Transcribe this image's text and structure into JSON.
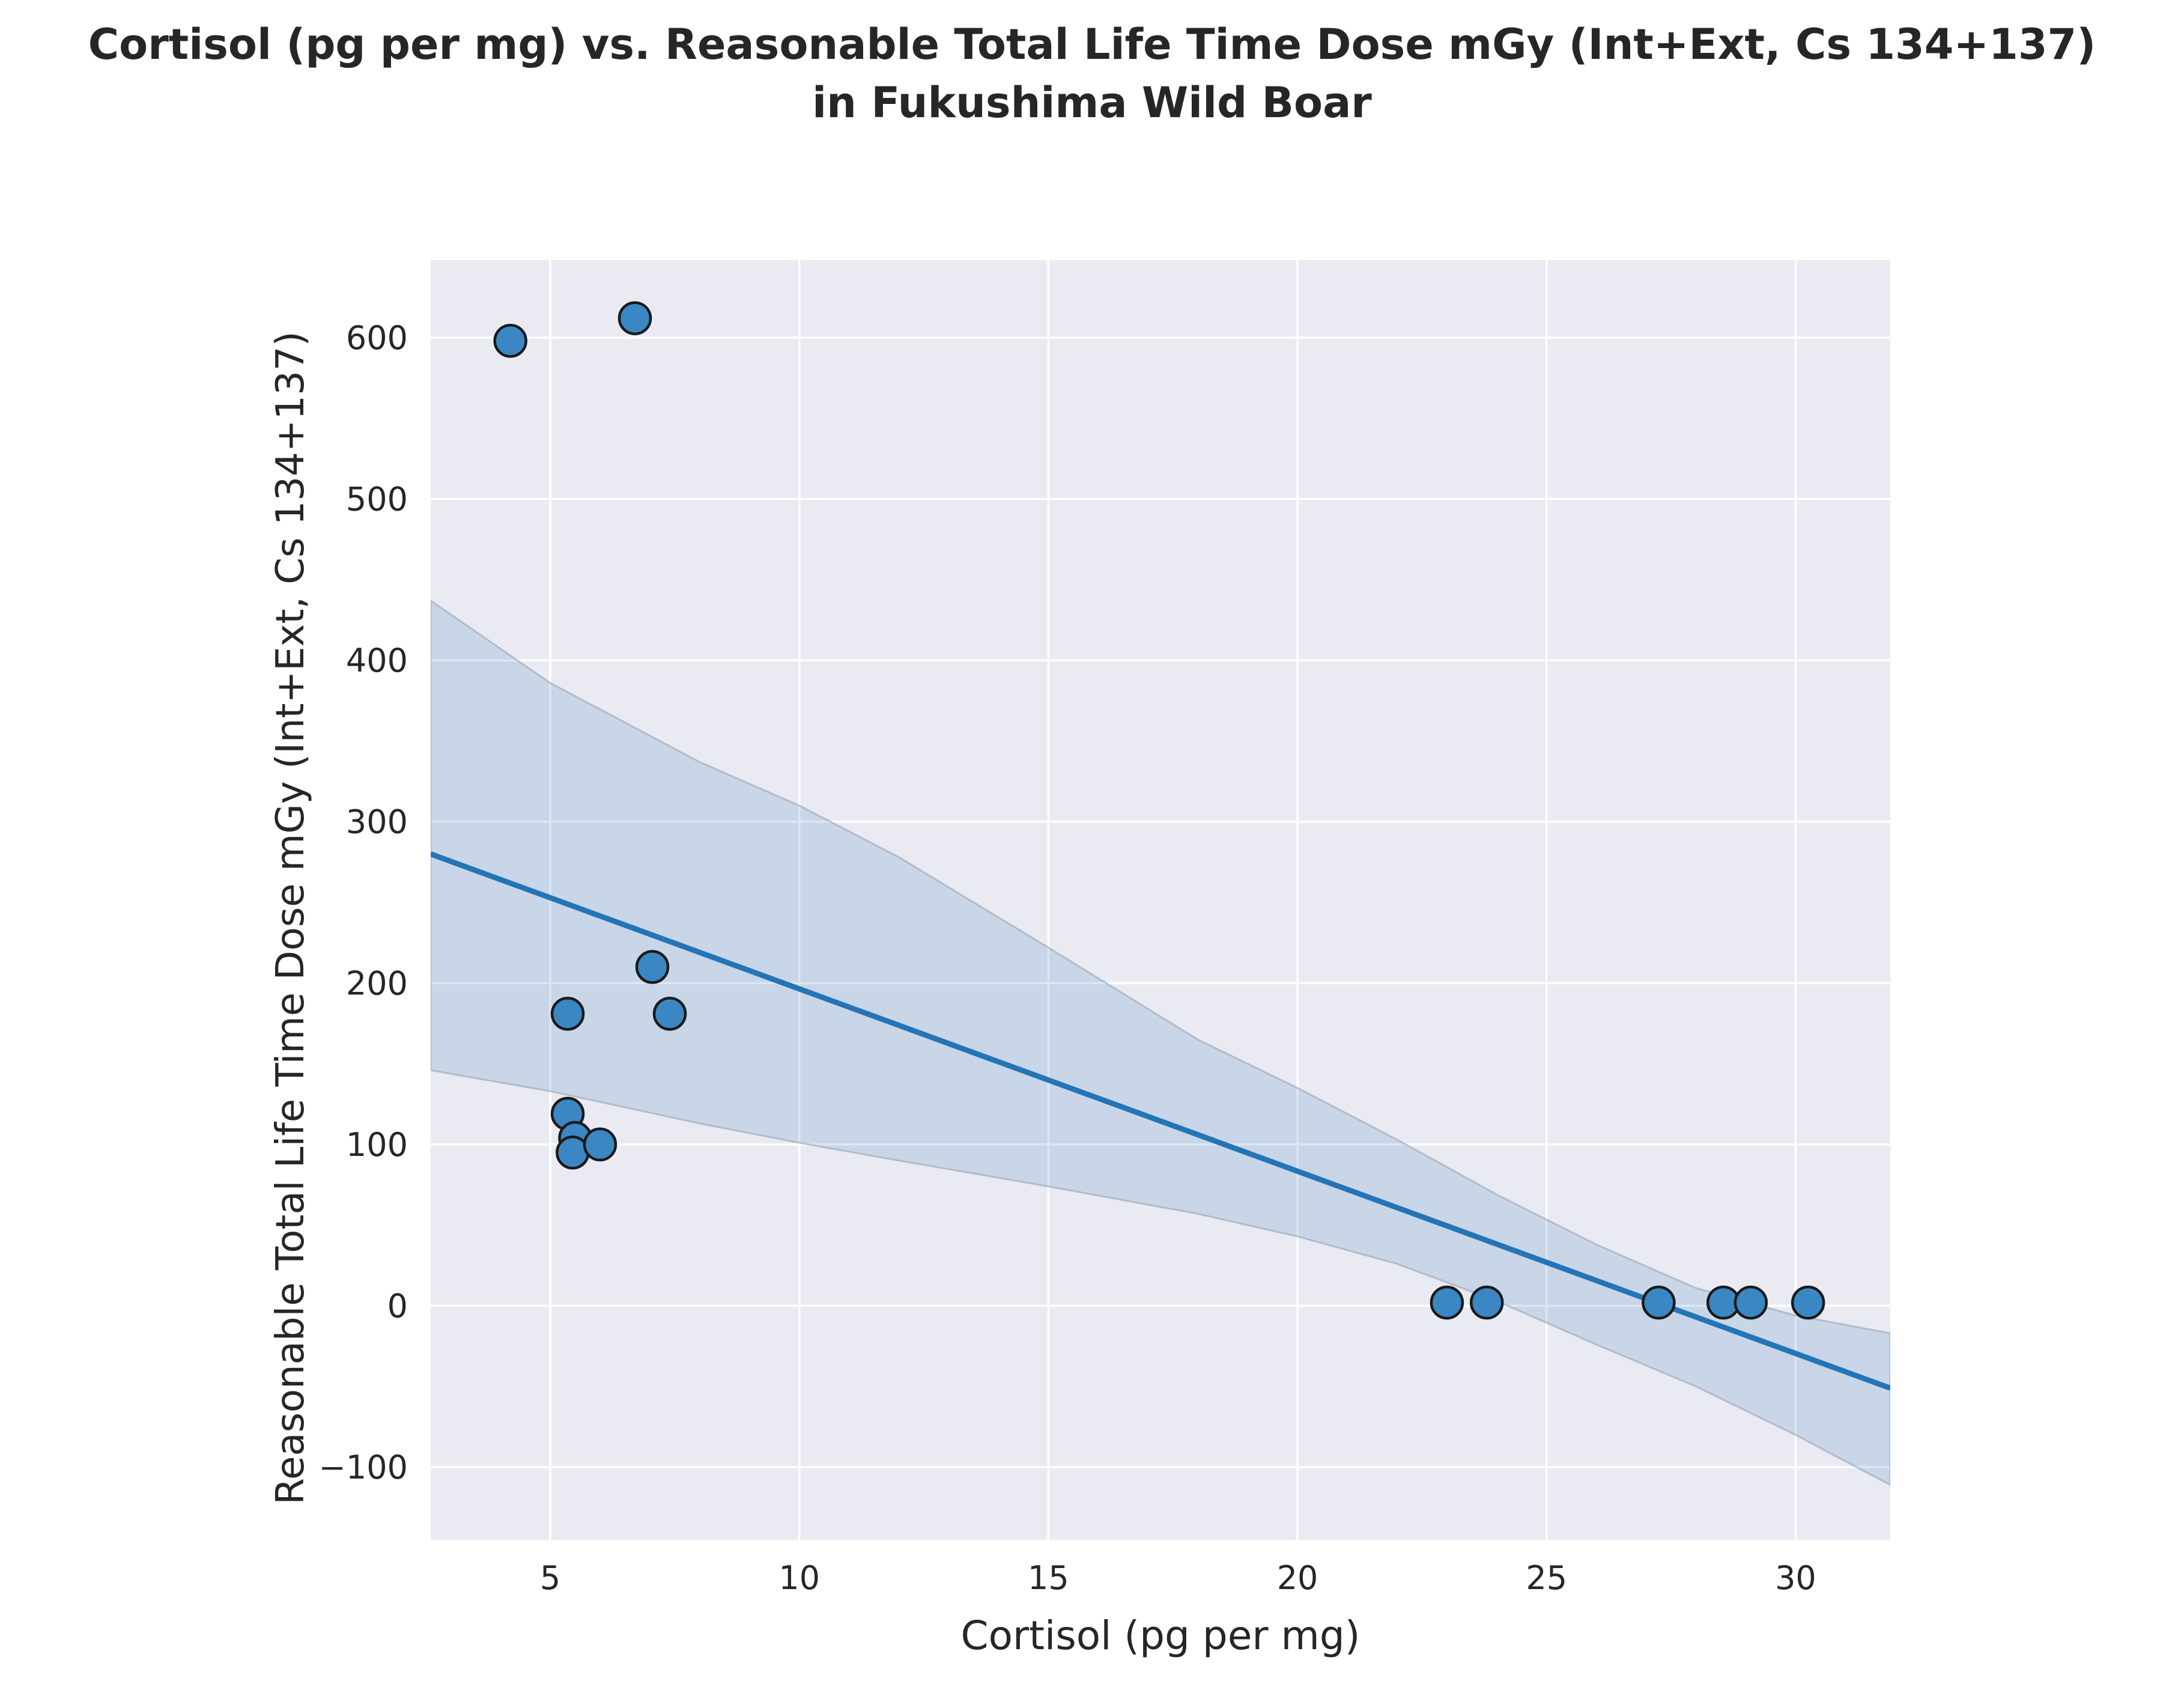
{
  "chart_data": {
    "type": "scatter",
    "title_line1": "Cortisol (pg per mg) vs. Reasonable Total Life Time Dose mGy (Int+Ext, Cs 134+137)",
    "title_line2": "in Fukushima Wild Boar",
    "xlabel": "Cortisol (pg per mg)",
    "ylabel": "Reasonable Total Life Time Dose mGy (Int+Ext, Cs 134+137)",
    "xlim": [
      2.6,
      31.9
    ],
    "ylim": [
      -145,
      648
    ],
    "xticks": [
      5,
      10,
      15,
      20,
      25,
      30
    ],
    "yticks": [
      -100,
      0,
      100,
      200,
      300,
      400,
      500,
      600
    ],
    "xtick_labels": [
      "5",
      "10",
      "15",
      "20",
      "25",
      "30"
    ],
    "ytick_labels": [
      "−100",
      "0",
      "100",
      "200",
      "300",
      "400",
      "500",
      "600"
    ],
    "grid": true,
    "colors": {
      "background": "#eaeaf2",
      "grid": "#ffffff",
      "points": "#3a87c4",
      "point_edge": "#1a1a1a",
      "regression_line": "#2474b6",
      "ci_band": "#2474b6"
    },
    "points": [
      {
        "x": 4.2,
        "y": 598
      },
      {
        "x": 6.7,
        "y": 612
      },
      {
        "x": 5.35,
        "y": 181
      },
      {
        "x": 7.05,
        "y": 210
      },
      {
        "x": 7.4,
        "y": 181
      },
      {
        "x": 5.35,
        "y": 119
      },
      {
        "x": 5.5,
        "y": 104
      },
      {
        "x": 5.45,
        "y": 95
      },
      {
        "x": 6.0,
        "y": 100
      },
      {
        "x": 23.0,
        "y": 2
      },
      {
        "x": 23.8,
        "y": 2
      },
      {
        "x": 27.25,
        "y": 2
      },
      {
        "x": 28.55,
        "y": 2
      },
      {
        "x": 29.1,
        "y": 2
      },
      {
        "x": 30.25,
        "y": 2
      }
    ],
    "regression": {
      "x": [
        2.6,
        31.9
      ],
      "y": [
        280,
        -51
      ]
    },
    "ci_band": {
      "x": [
        2.6,
        5,
        8,
        10,
        12,
        15,
        18,
        20,
        22,
        24,
        26,
        28,
        30,
        31.9
      ],
      "lower": [
        146,
        133,
        113,
        101,
        90,
        74,
        57,
        43,
        26,
        3,
        -24,
        -50,
        -80,
        -111
      ],
      "upper": [
        437,
        386,
        337,
        310,
        278,
        222,
        165,
        135,
        103,
        69,
        38,
        11,
        -6,
        -17
      ]
    }
  }
}
